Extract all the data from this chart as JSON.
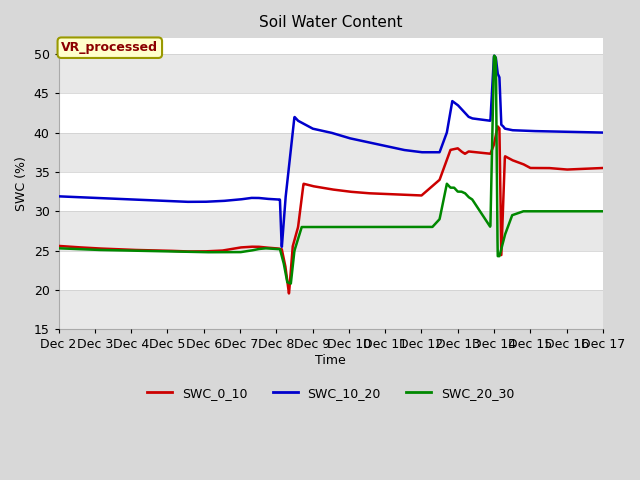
{
  "title": "Soil Water Content",
  "xlabel": "Time",
  "ylabel": "SWC (%)",
  "ylim": [
    15,
    52
  ],
  "xlim": [
    0,
    15
  ],
  "fig_bg_color": "#d8d8d8",
  "plot_bg_color": "#ffffff",
  "annotation_text": "VR_processed",
  "annotation_color": "#8b0000",
  "annotation_bg": "#ffffcc",
  "annotation_border": "#999900",
  "xtick_labels": [
    "Dec 2",
    "Dec 3",
    "Dec 4",
    "Dec 5",
    "Dec 6",
    "Dec 7",
    "Dec 8",
    "Dec 9",
    "Dec 10",
    "Dec 11",
    "Dec 12",
    "Dec 13",
    "Dec 14",
    "Dec 15",
    "Dec 16",
    "Dec 17"
  ],
  "legend_labels": [
    "SWC_0_10",
    "SWC_10_20",
    "SWC_20_30"
  ],
  "line_colors": [
    "#cc0000",
    "#0000cc",
    "#008800"
  ],
  "band_color": "#e8e8e8",
  "grid_color": "#cccccc"
}
